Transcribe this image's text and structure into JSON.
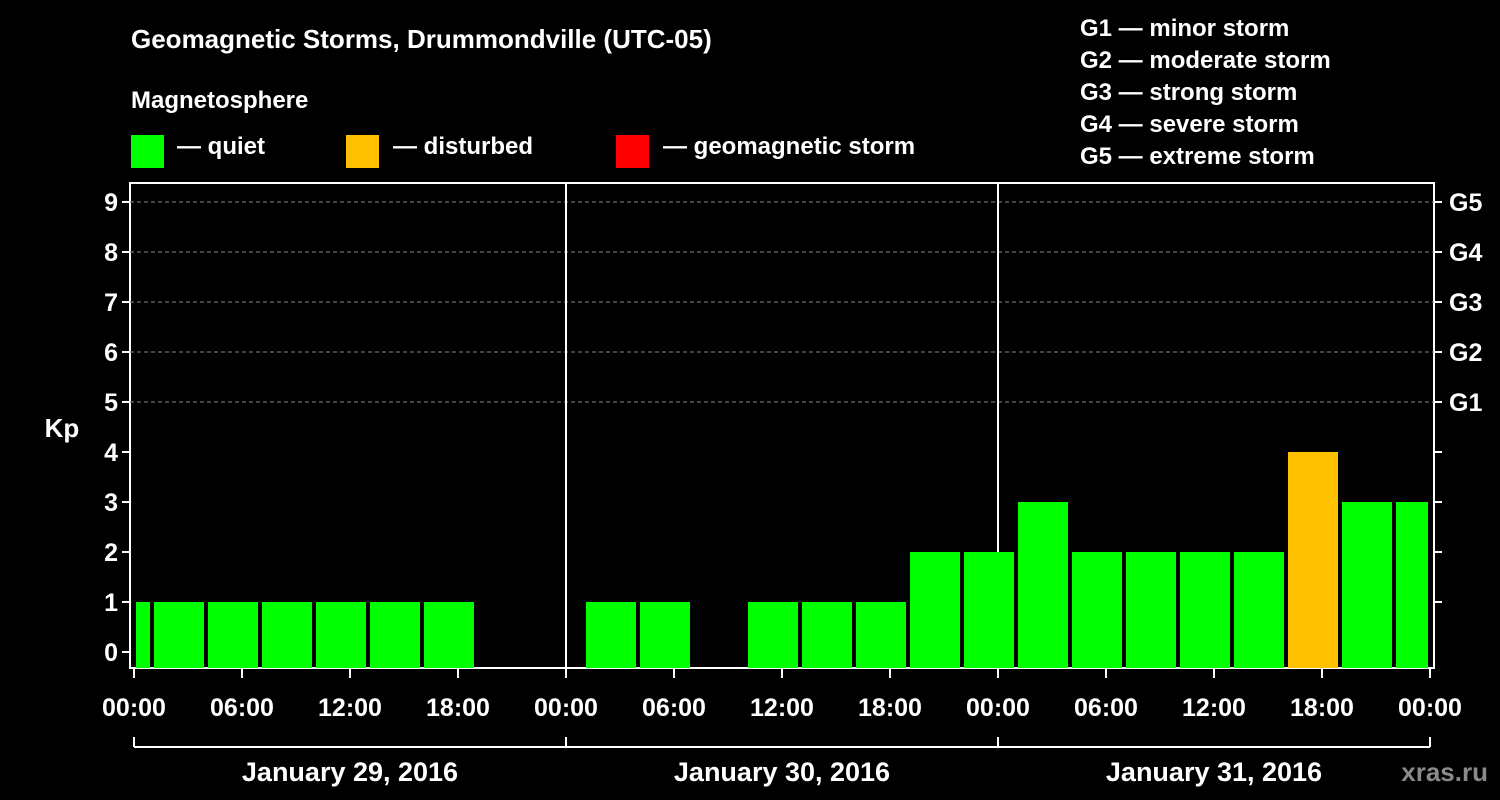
{
  "title": "Geomagnetic Storms, Drummondville (UTC-05)",
  "magnetosphere_heading": "Magnetosphere",
  "legend": [
    {
      "label": "— quiet",
      "color": "#00ff00"
    },
    {
      "label": "— disturbed",
      "color": "#ffc000"
    },
    {
      "label": "— geomagnetic storm",
      "color": "#ff0000"
    }
  ],
  "storm_levels": [
    "G1 — minor storm",
    "G2 — moderate storm",
    "G3 — strong storm",
    "G4 — severe storm",
    "G5 — extreme storm"
  ],
  "watermark": "xras.ru",
  "chart_data": {
    "type": "bar",
    "ylabel": "Kp",
    "ylim": [
      0,
      9
    ],
    "y_ticks": [
      "0",
      "1",
      "2",
      "3",
      "4",
      "5",
      "6",
      "7",
      "8",
      "9"
    ],
    "right_ticks": [
      {
        "kp": 5,
        "label": "G1"
      },
      {
        "kp": 6,
        "label": "G2"
      },
      {
        "kp": 7,
        "label": "G3"
      },
      {
        "kp": 8,
        "label": "G4"
      },
      {
        "kp": 9,
        "label": "G5"
      }
    ],
    "x_range_hours": [
      0,
      72
    ],
    "x_tick_labels": [
      "00:00",
      "06:00",
      "12:00",
      "18:00",
      "00:00",
      "06:00",
      "12:00",
      "18:00",
      "00:00",
      "06:00",
      "12:00",
      "18:00",
      "00:00"
    ],
    "days": [
      "January 29, 2016",
      "January 30, 2016",
      "January 31, 2016"
    ],
    "grid": "dashed horizontal lines at Kp 5-9",
    "bars": [
      {
        "start": 0,
        "end": 1,
        "kp": 1,
        "status": "quiet"
      },
      {
        "start": 1,
        "end": 4,
        "kp": 1,
        "status": "quiet"
      },
      {
        "start": 4,
        "end": 7,
        "kp": 1,
        "status": "quiet"
      },
      {
        "start": 7,
        "end": 10,
        "kp": 1,
        "status": "quiet"
      },
      {
        "start": 10,
        "end": 13,
        "kp": 1,
        "status": "quiet"
      },
      {
        "start": 13,
        "end": 16,
        "kp": 1,
        "status": "quiet"
      },
      {
        "start": 16,
        "end": 19,
        "kp": 1,
        "status": "quiet"
      },
      {
        "start": 25,
        "end": 28,
        "kp": 1,
        "status": "quiet"
      },
      {
        "start": 28,
        "end": 31,
        "kp": 1,
        "status": "quiet"
      },
      {
        "start": 34,
        "end": 37,
        "kp": 1,
        "status": "quiet"
      },
      {
        "start": 37,
        "end": 40,
        "kp": 1,
        "status": "quiet"
      },
      {
        "start": 40,
        "end": 43,
        "kp": 1,
        "status": "quiet"
      },
      {
        "start": 43,
        "end": 46,
        "kp": 2,
        "status": "quiet"
      },
      {
        "start": 46,
        "end": 49,
        "kp": 2,
        "status": "quiet"
      },
      {
        "start": 49,
        "end": 52,
        "kp": 3,
        "status": "quiet"
      },
      {
        "start": 52,
        "end": 55,
        "kp": 2,
        "status": "quiet"
      },
      {
        "start": 55,
        "end": 58,
        "kp": 2,
        "status": "quiet"
      },
      {
        "start": 58,
        "end": 61,
        "kp": 2,
        "status": "quiet"
      },
      {
        "start": 61,
        "end": 64,
        "kp": 2,
        "status": "quiet"
      },
      {
        "start": 64,
        "end": 67,
        "kp": 4,
        "status": "disturbed"
      },
      {
        "start": 67,
        "end": 70,
        "kp": 3,
        "status": "quiet"
      },
      {
        "start": 70,
        "end": 72,
        "kp": 3,
        "status": "quiet"
      }
    ],
    "status_colors": {
      "quiet": "#00ff00",
      "disturbed": "#ffc000",
      "storm": "#ff0000"
    }
  }
}
